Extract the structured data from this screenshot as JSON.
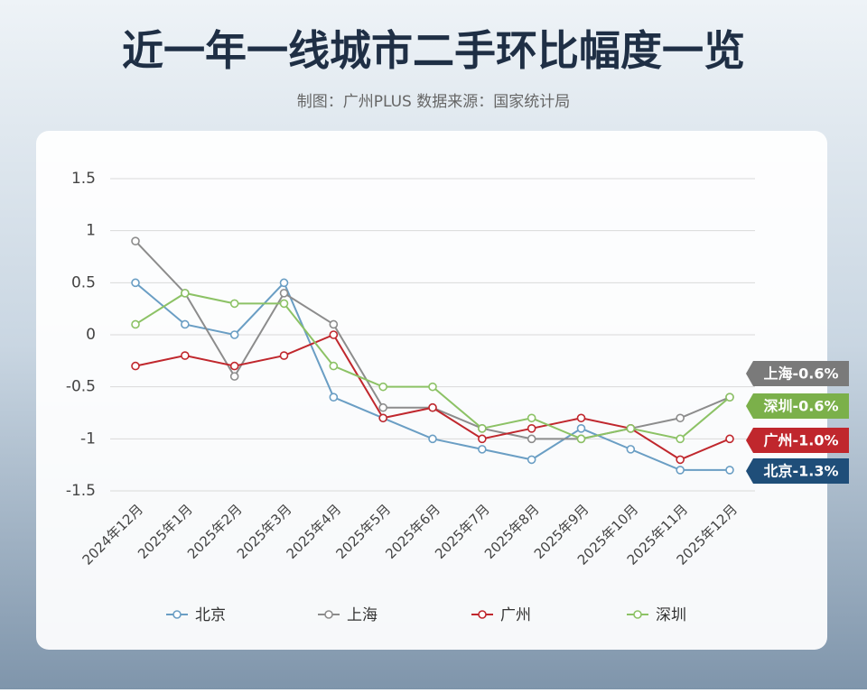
{
  "chart_data": {
    "type": "line",
    "title": "近一年一线城市二手环比幅度一览",
    "subtitle": "制图：广州PLUS   数据来源：国家统计局",
    "categories": [
      "2024年12月",
      "2025年1月",
      "2025年2月",
      "2025年3月",
      "2025年4月",
      "2025年5月",
      "2025年6月",
      "2025年7月",
      "2025年8月",
      "2025年9月",
      "2025年10月",
      "2025年11月",
      "2025年12月"
    ],
    "ylim": [
      -1.5,
      1.5
    ],
    "yticks": [
      1.5,
      1,
      0.5,
      0,
      -0.5,
      -1,
      -1.5
    ],
    "grid": true,
    "series": [
      {
        "name": "北京",
        "color": "#6a9ec4",
        "label_color": "#1f4e79",
        "end_label": "北京-1.3%",
        "values": [
          0.5,
          0.1,
          0,
          0.5,
          -0.6,
          -0.8,
          -1.0,
          -1.1,
          -1.2,
          -0.9,
          -1.1,
          -1.3,
          -1.3
        ]
      },
      {
        "name": "上海",
        "color": "#8c8c8c",
        "label_color": "#7a7a7a",
        "end_label": "上海-0.6%",
        "values": [
          0.9,
          0.4,
          -0.4,
          0.4,
          0.1,
          -0.7,
          -0.7,
          -0.9,
          -1.0,
          -1.0,
          -0.9,
          -0.8,
          -0.6
        ]
      },
      {
        "name": "广州",
        "color": "#c0272d",
        "label_color": "#c0272d",
        "end_label": "广州-1.0%",
        "values": [
          -0.3,
          -0.2,
          -0.3,
          -0.2,
          0,
          -0.8,
          -0.7,
          -1.0,
          -0.9,
          -0.8,
          -0.9,
          -1.2,
          -1.0
        ]
      },
      {
        "name": "深圳",
        "color": "#8cc265",
        "label_color": "#7bb04a",
        "end_label": "深圳-0.6%",
        "values": [
          0.1,
          0.4,
          0.3,
          0.3,
          -0.3,
          -0.5,
          -0.5,
          -0.9,
          -0.8,
          -1.0,
          -0.9,
          -1.0,
          -0.6
        ]
      }
    ]
  }
}
